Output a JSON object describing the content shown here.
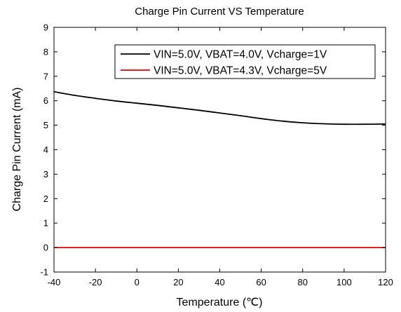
{
  "chart_data": {
    "type": "line",
    "title": "Charge Pin Current VS Temperature",
    "xlabel": "Temperature (℃)",
    "ylabel": "Charge Pin Current (mA)",
    "xlim": [
      -40,
      120
    ],
    "ylim": [
      -1,
      9
    ],
    "xticks": [
      -40,
      -20,
      0,
      20,
      40,
      60,
      80,
      100,
      120
    ],
    "yticks": [
      -1,
      0,
      1,
      2,
      3,
      4,
      5,
      6,
      7,
      8,
      9
    ],
    "grid": false,
    "legend_position": "top-right",
    "series": [
      {
        "name": "VIN=5.0V, VBAT=4.0V, Vcharge=1V",
        "color": "#000000",
        "x": [
          -40,
          -30,
          -20,
          -10,
          0,
          10,
          20,
          30,
          40,
          50,
          60,
          70,
          80,
          90,
          100,
          110,
          120
        ],
        "y": [
          6.37,
          6.22,
          6.1,
          5.99,
          5.9,
          5.81,
          5.71,
          5.61,
          5.5,
          5.39,
          5.27,
          5.17,
          5.1,
          5.06,
          5.04,
          5.04,
          5.05
        ]
      },
      {
        "name": "VIN=5.0V, VBAT=4.3V, Vcharge=5V",
        "color": "#e00000",
        "x": [
          -40,
          120
        ],
        "y": [
          0,
          0
        ]
      }
    ]
  }
}
